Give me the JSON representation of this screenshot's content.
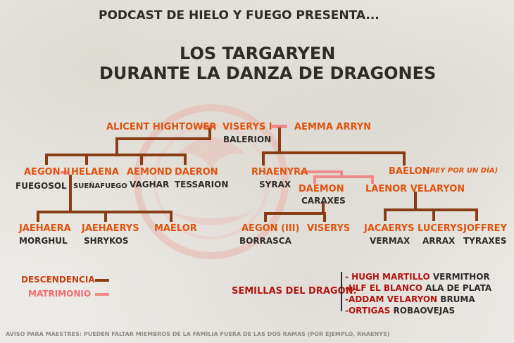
{
  "header": {
    "presenter": "PODCAST DE HIELO Y FUEGO PRESENTA...",
    "title_line1": "LOS TARGARYEN",
    "title_line2": "DURANTE LA DANZA DE DRAGONES"
  },
  "colors": {
    "name_orange": "#e0530f",
    "dragon_dark": "#2e2b28",
    "descent_line": "#8a3d14",
    "marriage_line": "#f08a8a",
    "legend_marriage_text": "#ef6c6c"
  },
  "tree": {
    "alicent": "ALICENT HIGHTOWER",
    "viserys": "VISERYS I",
    "viserys_dragon": "BALERION",
    "aemma": "AEMMA ARRYN",
    "aegon2": "AEGON II",
    "aegon2_dragon": "FUEGOSOL",
    "helaena": "HELAENA",
    "helaena_dragon": "SUEÑAFUEGO",
    "aemond": "AEMOND",
    "aemond_dragon": "VAGHAR",
    "daeron": "DAERON",
    "daeron_dragon": "TESSARION",
    "rhaenyra": "RHAENYRA",
    "rhaenyra_dragon": "SYRAX",
    "baelon": "BAELON",
    "baelon_note": "(REY POR UN DÍA)",
    "daemon": "DAEMON",
    "daemon_dragon": "CARAXES",
    "laenor": "LAENOR VELARYON",
    "jaehaera": "JAEHAERA",
    "jaehaera_dragon": "MORGHUL",
    "jaehaerys": "JAEHAERYS",
    "jaehaerys_dragon": "SHRYKOS",
    "maelor": "MAELOR",
    "aegon3": "AEGON (III)",
    "aegon3_dragon": "BORRASCA",
    "viserys2": "VISERYS",
    "jacaerys": "JACAERYS",
    "jacaerys_dragon": "VERMAX",
    "lucerys": "LUCERYS",
    "lucerys_dragon": "ARRAX",
    "joffrey": "JOFFREY",
    "joffrey_dragon": "TYRAXES"
  },
  "legend": {
    "descent": "DESCENDENCIA",
    "marriage": "MATRIMONIO"
  },
  "seeds": {
    "label": "SEMILLAS DEL DRAGÓN:",
    "items": [
      {
        "name": "- HUGH MARTILLO",
        "dragon": "VERMITHOR"
      },
      {
        "name": "-ULF EL BLANCO",
        "dragon": "ALA DE PLATA"
      },
      {
        "name": "-ADDAM VELARYON",
        "dragon": "BRUMA"
      },
      {
        "name": "-ORTIGAS",
        "dragon": "ROBAOVEJAS"
      }
    ]
  },
  "footer": "AVISO PARA MAESTRES: PUEDEN FALTAR MIEMBROS DE LA FAMILIA FUERA DE LAS DOS RAMAS (POR EJEMPLO, RHAENYS)"
}
